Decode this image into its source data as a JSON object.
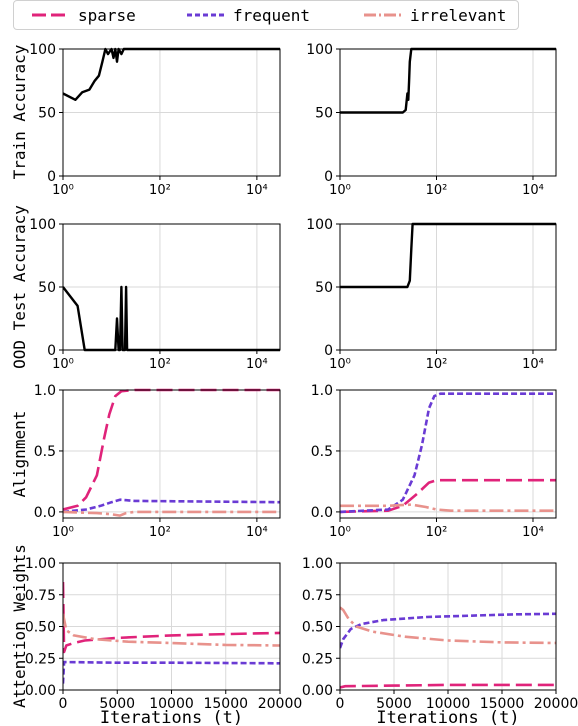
{
  "legend": [
    {
      "name": "sparse",
      "color": "#e0237a",
      "dash": "long"
    },
    {
      "name": "frequent",
      "color": "#6a3bd4",
      "dash": "short"
    },
    {
      "name": "irrelevant",
      "color": "#e8928c",
      "dash": "dashdot"
    }
  ],
  "row_labels": [
    "Train Accuracy",
    "OOD Test Accuracy",
    "Alignment",
    "Attention Weights"
  ],
  "chart_data": [
    {
      "type": "line",
      "row": 0,
      "col": 0,
      "xscale": "log",
      "xlim": [
        1,
        30000
      ],
      "ylim": [
        0,
        100
      ],
      "xticks": [
        "10⁰",
        "10²",
        "10⁴"
      ],
      "yticks": [
        "0",
        "50",
        "100"
      ],
      "series": [
        {
          "color": "#000000",
          "points": [
            [
              1,
              65
            ],
            [
              1.8,
              60
            ],
            [
              2.5,
              66
            ],
            [
              3.5,
              68
            ],
            [
              4.5,
              75
            ],
            [
              5.5,
              79
            ],
            [
              6.5,
              90
            ],
            [
              7.5,
              100
            ],
            [
              8.5,
              96
            ],
            [
              10,
              100
            ],
            [
              11,
              93
            ],
            [
              12,
              100
            ],
            [
              13,
              90
            ],
            [
              14,
              100
            ],
            [
              16,
              96
            ],
            [
              18,
              100
            ],
            [
              30000,
              100
            ]
          ]
        }
      ]
    },
    {
      "type": "line",
      "row": 0,
      "col": 1,
      "xscale": "log",
      "xlim": [
        1,
        30000
      ],
      "ylim": [
        0,
        100
      ],
      "xticks": [
        "10⁰",
        "10²",
        "10⁴"
      ],
      "yticks": [
        "0",
        "50",
        "100"
      ],
      "series": [
        {
          "color": "#000000",
          "points": [
            [
              1,
              50
            ],
            [
              20,
              50
            ],
            [
              23,
              52
            ],
            [
              25,
              65
            ],
            [
              26,
              60
            ],
            [
              27,
              75
            ],
            [
              28,
              90
            ],
            [
              30,
              100
            ],
            [
              30000,
              100
            ]
          ]
        }
      ]
    },
    {
      "type": "line",
      "row": 1,
      "col": 0,
      "xscale": "log",
      "xlim": [
        1,
        30000
      ],
      "ylim": [
        0,
        100
      ],
      "xticks": [
        "10⁰",
        "10²",
        "10⁴"
      ],
      "yticks": [
        "0",
        "50",
        "100"
      ],
      "series": [
        {
          "color": "#000000",
          "points": [
            [
              1,
              50
            ],
            [
              2,
              35
            ],
            [
              2.8,
              0
            ],
            [
              12,
              0
            ],
            [
              13,
              25
            ],
            [
              14,
              0
            ],
            [
              15,
              0
            ],
            [
              16,
              50
            ],
            [
              17,
              0
            ],
            [
              19,
              0
            ],
            [
              20,
              50
            ],
            [
              21,
              0
            ],
            [
              30000,
              0
            ]
          ]
        }
      ]
    },
    {
      "type": "line",
      "row": 1,
      "col": 1,
      "xscale": "log",
      "xlim": [
        1,
        30000
      ],
      "ylim": [
        0,
        100
      ],
      "xticks": [
        "10⁰",
        "10²",
        "10⁴"
      ],
      "yticks": [
        "0",
        "50",
        "100"
      ],
      "series": [
        {
          "color": "#000000",
          "points": [
            [
              1,
              50
            ],
            [
              25,
              50
            ],
            [
              28,
              55
            ],
            [
              30,
              80
            ],
            [
              32,
              100
            ],
            [
              30000,
              100
            ]
          ]
        }
      ]
    },
    {
      "type": "line",
      "row": 2,
      "col": 0,
      "xscale": "log",
      "xlim": [
        1,
        30000
      ],
      "ylim": [
        -0.05,
        1.0
      ],
      "xticks": [
        "10⁰",
        "10²",
        "10⁴"
      ],
      "yticks": [
        "0.0",
        "0.5",
        "1.0"
      ],
      "series": [
        {
          "name": "sparse",
          "color": "#e0237a",
          "dash": "long",
          "points": [
            [
              1,
              0.02
            ],
            [
              2,
              0.05
            ],
            [
              3,
              0.12
            ],
            [
              5,
              0.3
            ],
            [
              7,
              0.6
            ],
            [
              9,
              0.8
            ],
            [
              12,
              0.95
            ],
            [
              16,
              0.99
            ],
            [
              30,
              1.0
            ],
            [
              30000,
              1.0
            ]
          ]
        },
        {
          "name": "frequent",
          "color": "#6a3bd4",
          "dash": "short",
          "points": [
            [
              1,
              0.0
            ],
            [
              3,
              0.02
            ],
            [
              6,
              0.05
            ],
            [
              10,
              0.08
            ],
            [
              15,
              0.1
            ],
            [
              30,
              0.09
            ],
            [
              30000,
              0.08
            ]
          ]
        },
        {
          "name": "irrelevant",
          "color": "#e8928c",
          "dash": "dashdot",
          "points": [
            [
              1,
              0.0
            ],
            [
              5,
              -0.01
            ],
            [
              10,
              -0.02
            ],
            [
              15,
              -0.03
            ],
            [
              20,
              -0.01
            ],
            [
              30,
              0.0
            ],
            [
              30000,
              0.0
            ]
          ]
        }
      ]
    },
    {
      "type": "line",
      "row": 2,
      "col": 1,
      "xscale": "log",
      "xlim": [
        1,
        30000
      ],
      "ylim": [
        -0.05,
        1.0
      ],
      "xticks": [
        "10⁰",
        "10²",
        "10⁴"
      ],
      "yticks": [
        "0.0",
        "0.5",
        "1.0"
      ],
      "series": [
        {
          "name": "sparse",
          "color": "#e0237a",
          "dash": "long",
          "points": [
            [
              1,
              0.0
            ],
            [
              10,
              0.01
            ],
            [
              20,
              0.05
            ],
            [
              40,
              0.15
            ],
            [
              70,
              0.24
            ],
            [
              100,
              0.26
            ],
            [
              30000,
              0.26
            ]
          ]
        },
        {
          "name": "frequent",
          "color": "#6a3bd4",
          "dash": "short",
          "points": [
            [
              1,
              0.0
            ],
            [
              10,
              0.02
            ],
            [
              20,
              0.1
            ],
            [
              35,
              0.3
            ],
            [
              50,
              0.55
            ],
            [
              70,
              0.85
            ],
            [
              90,
              0.95
            ],
            [
              120,
              0.97
            ],
            [
              30000,
              0.97
            ]
          ]
        },
        {
          "name": "irrelevant",
          "color": "#e8928c",
          "dash": "dashdot",
          "points": [
            [
              1,
              0.05
            ],
            [
              10,
              0.05
            ],
            [
              30,
              0.06
            ],
            [
              60,
              0.04
            ],
            [
              100,
              0.02
            ],
            [
              200,
              0.01
            ],
            [
              30000,
              0.01
            ]
          ]
        }
      ]
    },
    {
      "type": "line",
      "row": 3,
      "col": 0,
      "xscale": "linear",
      "xlim": [
        0,
        20000
      ],
      "ylim": [
        0,
        1.0
      ],
      "xticks": [
        "0",
        "5000",
        "10000",
        "15000",
        "20000"
      ],
      "yticks": [
        "0.00",
        "0.25",
        "0.50",
        "0.75",
        "1.00"
      ],
      "xlabel": "Iterations (t)",
      "series": [
        {
          "name": "sparse",
          "color": "#e0237a",
          "dash": "long",
          "points": [
            [
              0,
              0.85
            ],
            [
              100,
              0.3
            ],
            [
              300,
              0.35
            ],
            [
              1000,
              0.37
            ],
            [
              2000,
              0.39
            ],
            [
              5000,
              0.41
            ],
            [
              10000,
              0.43
            ],
            [
              15000,
              0.44
            ],
            [
              20000,
              0.45
            ]
          ]
        },
        {
          "name": "frequent",
          "color": "#6a3bd4",
          "dash": "short",
          "points": [
            [
              0,
              0.05
            ],
            [
              100,
              0.22
            ],
            [
              500,
              0.22
            ],
            [
              5000,
              0.215
            ],
            [
              10000,
              0.215
            ],
            [
              20000,
              0.21
            ]
          ]
        },
        {
          "name": "irrelevant",
          "color": "#e8928c",
          "dash": "dashdot",
          "points": [
            [
              0,
              0.6
            ],
            [
              300,
              0.47
            ],
            [
              1000,
              0.43
            ],
            [
              3000,
              0.4
            ],
            [
              6000,
              0.38
            ],
            [
              10000,
              0.37
            ],
            [
              15000,
              0.355
            ],
            [
              20000,
              0.35
            ]
          ]
        }
      ]
    },
    {
      "type": "line",
      "row": 3,
      "col": 1,
      "xscale": "linear",
      "xlim": [
        0,
        20000
      ],
      "ylim": [
        0,
        1.0
      ],
      "xticks": [
        "0",
        "5000",
        "10000",
        "15000",
        "20000"
      ],
      "yticks": [
        "0.00",
        "0.25",
        "0.50",
        "0.75",
        "1.00"
      ],
      "xlabel": "Iterations (t)",
      "series": [
        {
          "name": "sparse",
          "color": "#e0237a",
          "dash": "long",
          "points": [
            [
              0,
              0.02
            ],
            [
              500,
              0.03
            ],
            [
              5000,
              0.035
            ],
            [
              10000,
              0.04
            ],
            [
              20000,
              0.04
            ]
          ]
        },
        {
          "name": "frequent",
          "color": "#6a3bd4",
          "dash": "short",
          "points": [
            [
              0,
              0.33
            ],
            [
              300,
              0.4
            ],
            [
              1000,
              0.48
            ],
            [
              2000,
              0.52
            ],
            [
              4000,
              0.55
            ],
            [
              8000,
              0.575
            ],
            [
              12000,
              0.585
            ],
            [
              16000,
              0.595
            ],
            [
              20000,
              0.6
            ]
          ]
        },
        {
          "name": "irrelevant",
          "color": "#e8928c",
          "dash": "dashdot",
          "points": [
            [
              0,
              0.65
            ],
            [
              300,
              0.63
            ],
            [
              800,
              0.56
            ],
            [
              1500,
              0.5
            ],
            [
              3000,
              0.46
            ],
            [
              6000,
              0.42
            ],
            [
              10000,
              0.39
            ],
            [
              15000,
              0.375
            ],
            [
              20000,
              0.37
            ]
          ]
        }
      ]
    }
  ]
}
